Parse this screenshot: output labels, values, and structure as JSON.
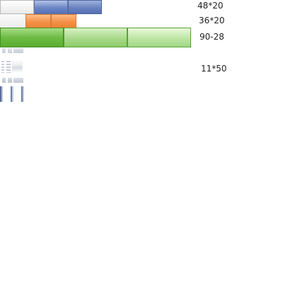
{
  "sprites": {
    "row_48x20": {
      "size_label": "48*20"
    },
    "row_36x20": {
      "size_label": "36*20"
    },
    "row_90x28": {
      "size_label": "90-28"
    },
    "row_11x50": {
      "size_label": "11*50"
    }
  },
  "colors": {
    "blue_accent": "#6c86c4",
    "orange_accent": "#f3914a",
    "green_accent": "#6dbb43",
    "gray_sprite": "#c6ccd7"
  }
}
